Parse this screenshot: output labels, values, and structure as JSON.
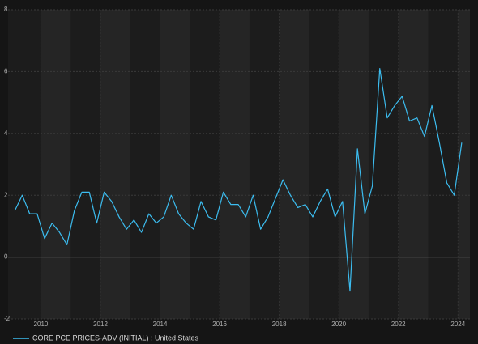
{
  "chart_data": {
    "type": "line",
    "x": [
      2009.125,
      2009.375,
      2009.625,
      2009.875,
      2010.125,
      2010.375,
      2010.625,
      2010.875,
      2011.125,
      2011.375,
      2011.625,
      2011.875,
      2012.125,
      2012.375,
      2012.625,
      2012.875,
      2013.125,
      2013.375,
      2013.625,
      2013.875,
      2014.125,
      2014.375,
      2014.625,
      2014.875,
      2015.125,
      2015.375,
      2015.625,
      2015.875,
      2016.125,
      2016.375,
      2016.625,
      2016.875,
      2017.125,
      2017.375,
      2017.625,
      2017.875,
      2018.125,
      2018.375,
      2018.625,
      2018.875,
      2019.125,
      2019.375,
      2019.625,
      2019.875,
      2020.125,
      2020.375,
      2020.625,
      2020.875,
      2021.125,
      2021.375,
      2021.625,
      2021.875,
      2022.125,
      2022.375,
      2022.625,
      2022.875,
      2023.125,
      2023.375,
      2023.625,
      2023.875,
      2024.125
    ],
    "series": [
      {
        "name": "CORE PCE PRICES-ADV (INITIAL) : United States",
        "color": "#3cbdf0",
        "values": [
          1.5,
          2.0,
          1.4,
          1.4,
          0.6,
          1.1,
          0.8,
          0.4,
          1.5,
          2.1,
          2.1,
          1.1,
          2.1,
          1.8,
          1.3,
          0.9,
          1.2,
          0.8,
          1.4,
          1.1,
          1.3,
          2.0,
          1.4,
          1.1,
          0.9,
          1.8,
          1.3,
          1.2,
          2.1,
          1.7,
          1.7,
          1.3,
          2.0,
          0.9,
          1.3,
          1.9,
          2.5,
          2.0,
          1.6,
          1.7,
          1.3,
          1.8,
          2.2,
          1.3,
          1.8,
          -1.1,
          3.5,
          1.4,
          2.3,
          6.1,
          4.5,
          4.9,
          5.2,
          4.4,
          4.5,
          3.9,
          4.9,
          3.7,
          2.4,
          2.0,
          3.7
        ]
      }
    ],
    "xlim": [
      2008.9,
      2024.4
    ],
    "xticks": [
      2010,
      2012,
      2014,
      2016,
      2018,
      2020,
      2022,
      2024
    ],
    "ylim": [
      -2,
      8
    ],
    "yticks": [
      8,
      6,
      4,
      2,
      0,
      -2
    ],
    "grid": true
  }
}
